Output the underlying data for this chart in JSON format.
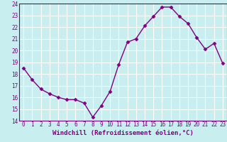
{
  "x": [
    0,
    1,
    2,
    3,
    4,
    5,
    6,
    7,
    8,
    9,
    10,
    11,
    12,
    13,
    14,
    15,
    16,
    17,
    18,
    19,
    20,
    21,
    22,
    23
  ],
  "y": [
    18.5,
    17.5,
    16.7,
    16.3,
    16.0,
    15.8,
    15.8,
    15.5,
    14.3,
    15.3,
    16.5,
    18.8,
    20.7,
    21.0,
    22.1,
    22.9,
    23.7,
    23.7,
    22.9,
    22.3,
    21.1,
    20.1,
    20.6,
    18.9
  ],
  "xlim": [
    -0.5,
    23.5
  ],
  "ylim": [
    14,
    24
  ],
  "yticks": [
    14,
    15,
    16,
    17,
    18,
    19,
    20,
    21,
    22,
    23,
    24
  ],
  "xticks": [
    0,
    1,
    2,
    3,
    4,
    5,
    6,
    7,
    8,
    9,
    10,
    11,
    12,
    13,
    14,
    15,
    16,
    17,
    18,
    19,
    20,
    21,
    22,
    23
  ],
  "xlabel": "Windchill (Refroidissement éolien,°C)",
  "line_color": "#800080",
  "marker": "D",
  "marker_size": 2.5,
  "bg_color": "#c8eef0",
  "grid_color": "#b0d8dc"
}
